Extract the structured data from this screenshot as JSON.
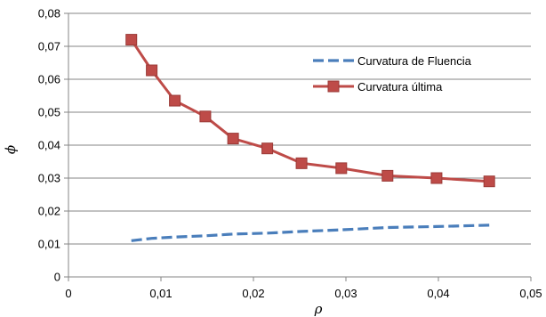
{
  "chart_data": {
    "type": "line",
    "xlabel": "ρ",
    "ylabel": "ϕ",
    "xlim": [
      0,
      0.05
    ],
    "ylim": [
      0,
      0.08
    ],
    "x_ticks": [
      0,
      0.01,
      0.02,
      0.03,
      0.04,
      0.05
    ],
    "x_tick_labels": [
      "0",
      "0,01",
      "0,02",
      "0,03",
      "0,04",
      "0,05"
    ],
    "y_ticks": [
      0,
      0.01,
      0.02,
      0.03,
      0.04,
      0.05,
      0.06,
      0.07,
      0.08
    ],
    "y_tick_labels": [
      "0",
      "0,01",
      "0,02",
      "0,03",
      "0,04",
      "0,05",
      "0,06",
      "0,07",
      "0,08"
    ],
    "grid": "horizontal major",
    "legend_position": "top-right",
    "series": [
      {
        "name": "Curvatura de Fluencia",
        "style": "dashed",
        "color": "#4a7ebb",
        "x": [
          0.0068,
          0.009,
          0.0115,
          0.0148,
          0.0178,
          0.0215,
          0.0252,
          0.0295,
          0.0345,
          0.0398,
          0.0455
        ],
        "y": [
          0.011,
          0.0117,
          0.0121,
          0.0125,
          0.013,
          0.0133,
          0.0138,
          0.0143,
          0.015,
          0.0153,
          0.0157
        ]
      },
      {
        "name": "Curvatura última",
        "style": "solid-square",
        "color": "#be4b48",
        "x": [
          0.0068,
          0.009,
          0.0115,
          0.0148,
          0.0178,
          0.0215,
          0.0252,
          0.0295,
          0.0345,
          0.0398,
          0.0455
        ],
        "y": [
          0.072,
          0.0627,
          0.0535,
          0.0487,
          0.042,
          0.039,
          0.0345,
          0.033,
          0.0307,
          0.03,
          0.029
        ]
      }
    ]
  }
}
